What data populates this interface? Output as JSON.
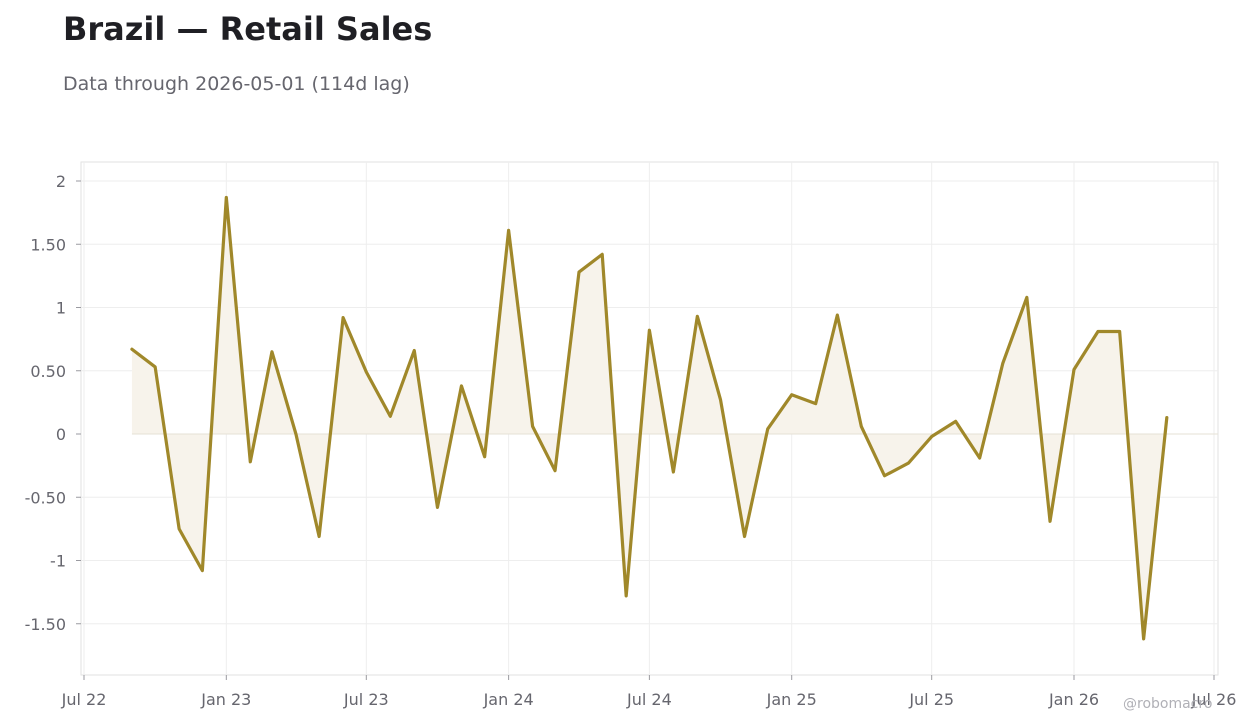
{
  "header": {
    "title": "Brazil — Retail Sales",
    "subtitle": "Data through 2026-05-01 (114d lag)"
  },
  "watermark": "@robomacro",
  "colors": {
    "line": "#a0882a",
    "fill": "#f7f3eb",
    "grid": "#eeeeee",
    "zero_line": "#e6e1d6",
    "axis_text": "#66666e",
    "title": "#1f1f24",
    "frame": "#e2e2e2"
  },
  "chart_data": {
    "type": "line",
    "title": "Brazil — Retail Sales",
    "subtitle": "Data through 2026-05-01 (114d lag)",
    "xlabel": "",
    "ylabel": "",
    "xlim": [
      "2022-07-01",
      "2026-07-01"
    ],
    "ylim": [
      -1.9,
      2.15
    ],
    "grid": true,
    "legend": "none",
    "fill_to_zero": true,
    "x_ticks": [
      {
        "date": "2022-07-01",
        "label": "Jul 22"
      },
      {
        "date": "2023-01-01",
        "label": "Jan 23"
      },
      {
        "date": "2023-07-01",
        "label": "Jul 23"
      },
      {
        "date": "2024-01-01",
        "label": "Jan 24"
      },
      {
        "date": "2024-07-01",
        "label": "Jul 24"
      },
      {
        "date": "2025-01-01",
        "label": "Jan 25"
      },
      {
        "date": "2025-07-01",
        "label": "Jul 25"
      },
      {
        "date": "2026-01-01",
        "label": "Jan 26"
      },
      {
        "date": "2026-07-01",
        "label": "Jul 26"
      }
    ],
    "y_ticks": [
      {
        "value": 2,
        "label": "2"
      },
      {
        "value": 1.5,
        "label": "1.50"
      },
      {
        "value": 1,
        "label": "1"
      },
      {
        "value": 0.5,
        "label": "0.50"
      },
      {
        "value": 0,
        "label": "0"
      },
      {
        "value": -0.5,
        "label": "-0.50"
      },
      {
        "value": -1,
        "label": "-1"
      },
      {
        "value": -1.5,
        "label": "-1.50"
      }
    ],
    "series": [
      {
        "points": [
          {
            "x": "2022-09-01",
            "y": 0.67
          },
          {
            "x": "2022-10-01",
            "y": 0.53
          },
          {
            "x": "2022-11-01",
            "y": -0.75
          },
          {
            "x": "2022-12-01",
            "y": -1.08
          },
          {
            "x": "2023-01-01",
            "y": 1.87
          },
          {
            "x": "2023-02-01",
            "y": -0.22
          },
          {
            "x": "2023-03-01",
            "y": 0.65
          },
          {
            "x": "2023-04-01",
            "y": 0.0
          },
          {
            "x": "2023-05-01",
            "y": -0.81
          },
          {
            "x": "2023-06-01",
            "y": 0.92
          },
          {
            "x": "2023-07-01",
            "y": 0.49
          },
          {
            "x": "2023-08-01",
            "y": 0.14
          },
          {
            "x": "2023-09-01",
            "y": 0.66
          },
          {
            "x": "2023-10-01",
            "y": -0.58
          },
          {
            "x": "2023-11-01",
            "y": 0.38
          },
          {
            "x": "2023-12-01",
            "y": -0.18
          },
          {
            "x": "2024-01-01",
            "y": 1.61
          },
          {
            "x": "2024-02-01",
            "y": 0.06
          },
          {
            "x": "2024-03-01",
            "y": -0.29
          },
          {
            "x": "2024-04-01",
            "y": 1.28
          },
          {
            "x": "2024-05-01",
            "y": 1.42
          },
          {
            "x": "2024-06-01",
            "y": -1.28
          },
          {
            "x": "2024-07-01",
            "y": 0.82
          },
          {
            "x": "2024-08-01",
            "y": -0.3
          },
          {
            "x": "2024-09-01",
            "y": 0.93
          },
          {
            "x": "2024-10-01",
            "y": 0.27
          },
          {
            "x": "2024-11-01",
            "y": -0.81
          },
          {
            "x": "2024-12-01",
            "y": 0.04
          },
          {
            "x": "2025-01-01",
            "y": 0.31
          },
          {
            "x": "2025-02-01",
            "y": 0.24
          },
          {
            "x": "2025-03-01",
            "y": 0.94
          },
          {
            "x": "2025-04-01",
            "y": 0.06
          },
          {
            "x": "2025-05-01",
            "y": -0.33
          },
          {
            "x": "2025-06-01",
            "y": -0.23
          },
          {
            "x": "2025-07-01",
            "y": -0.02
          },
          {
            "x": "2025-08-01",
            "y": 0.1
          },
          {
            "x": "2025-09-01",
            "y": -0.19
          },
          {
            "x": "2025-10-01",
            "y": 0.56
          },
          {
            "x": "2025-11-01",
            "y": 1.08
          },
          {
            "x": "2025-12-01",
            "y": -0.69
          },
          {
            "x": "2026-01-01",
            "y": 0.51
          },
          {
            "x": "2026-02-01",
            "y": 0.81
          },
          {
            "x": "2026-03-01",
            "y": 0.81
          },
          {
            "x": "2026-04-01",
            "y": -1.62
          },
          {
            "x": "2026-05-01",
            "y": 0.13
          }
        ]
      }
    ]
  }
}
